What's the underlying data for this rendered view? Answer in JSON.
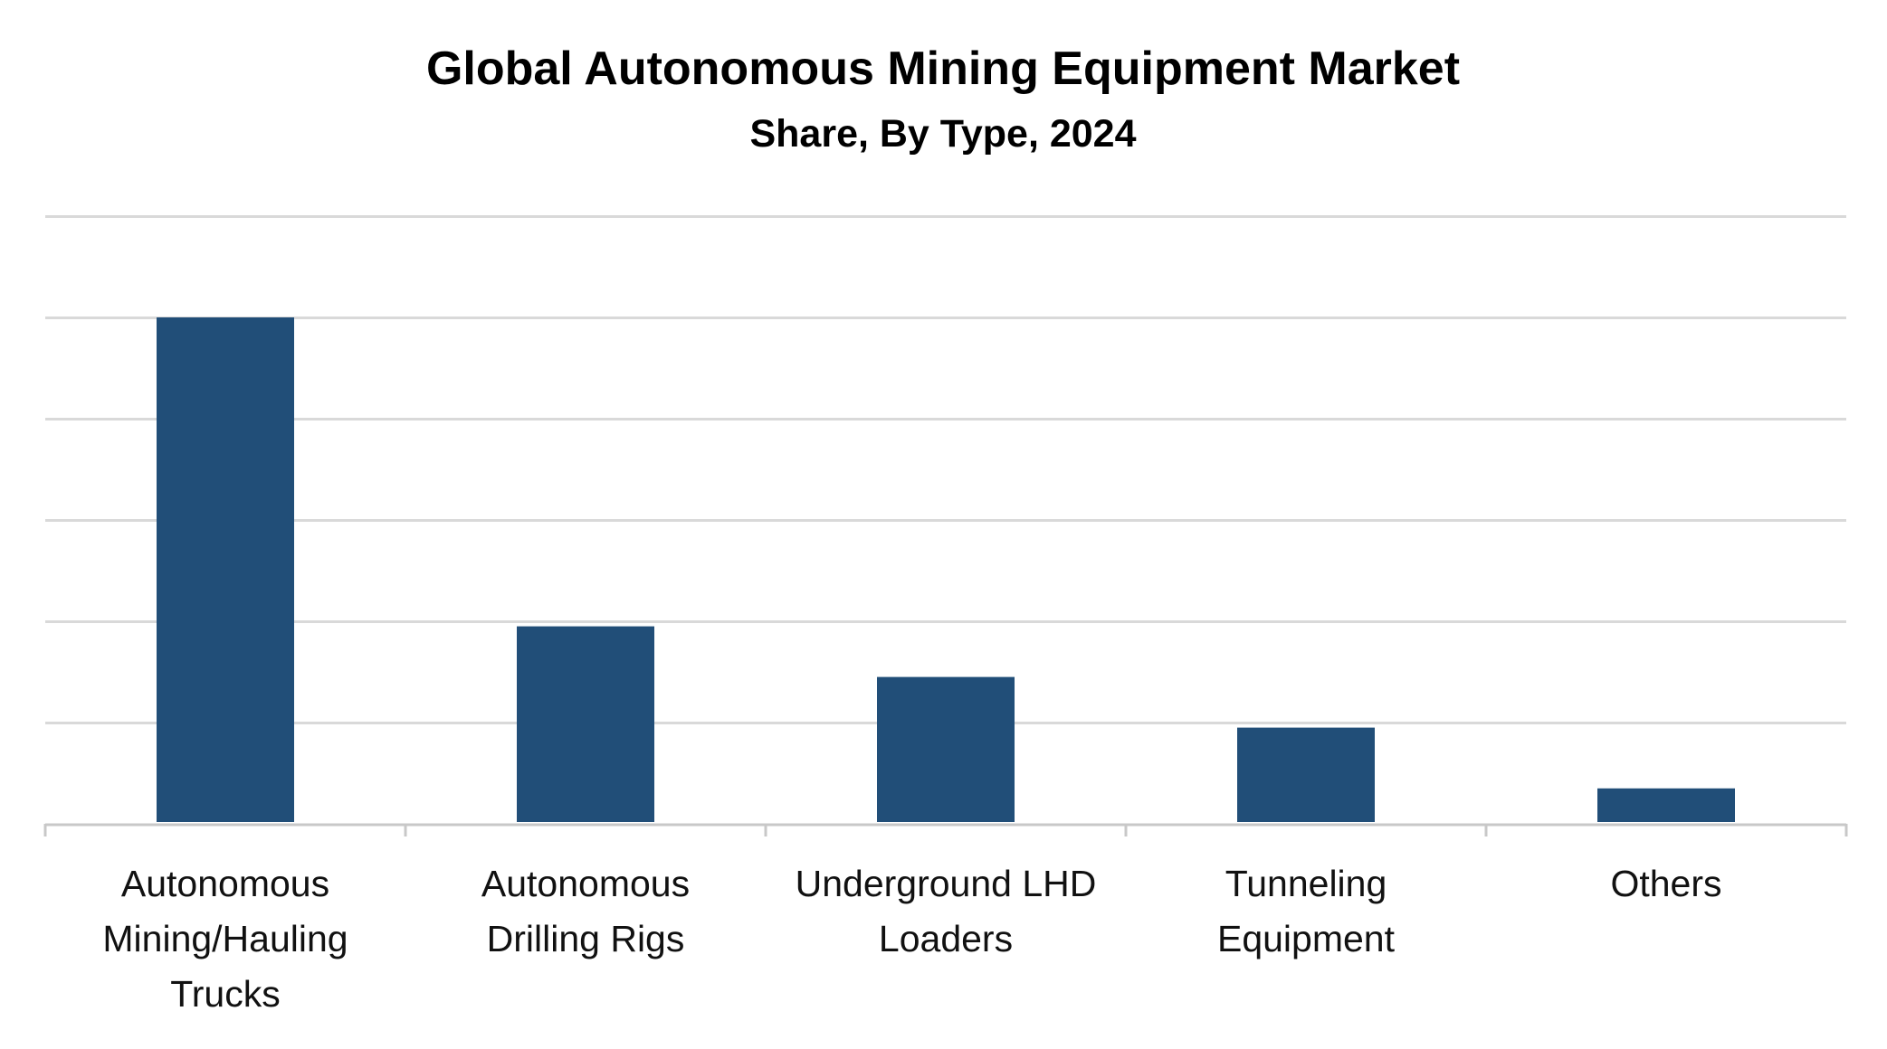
{
  "chart_data": {
    "type": "bar",
    "title": "Global Autonomous Mining Equipment Market",
    "subtitle": "Share, By Type, 2024",
    "xlabel": "",
    "ylabel": "",
    "categories": [
      "Autonomous Mining/Hauling Trucks",
      "Autonomous Drilling Rigs",
      "Underground LHD Loaders",
      "Tunneling Equipment",
      "Others"
    ],
    "category_lines": [
      [
        "Autonomous",
        "Mining/Hauling",
        "Trucks"
      ],
      [
        "Autonomous",
        "Drilling Rigs"
      ],
      [
        "Underground LHD",
        "Loaders"
      ],
      [
        "Tunneling",
        "Equipment"
      ],
      [
        "Others"
      ]
    ],
    "values": [
      50,
      19.5,
      14.5,
      9.5,
      3.5
    ],
    "ylim": [
      0,
      60
    ],
    "y_gridlines": [
      10,
      20,
      30,
      40,
      50,
      60
    ],
    "grid": true,
    "y_tick_labels_shown": false,
    "colors": {
      "bar": "#214e78",
      "grid": "#d9d9d9",
      "axis": "#c8c8c8",
      "text": "#000000"
    }
  }
}
